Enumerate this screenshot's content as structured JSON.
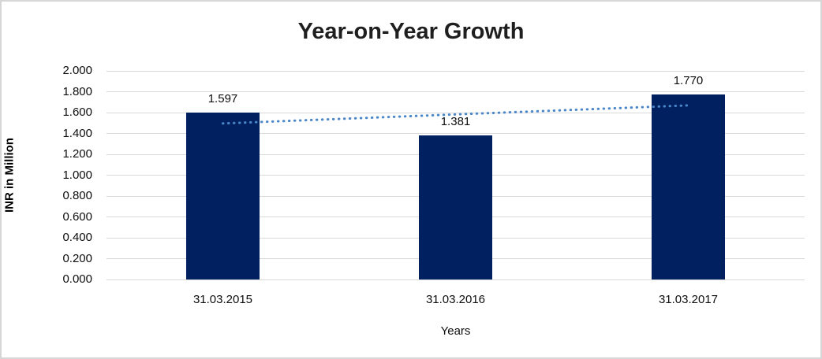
{
  "window": {
    "title": "Year-on-Year Growth"
  },
  "chart_data": {
    "type": "bar",
    "title": "Year-on-Year Growth",
    "categories": [
      "31.03.2015",
      "31.03.2016",
      "31.03.2017"
    ],
    "values": [
      1.597,
      1.381,
      1.77
    ],
    "value_labels": [
      "1.597",
      "1.381",
      "1.770"
    ],
    "xlabel": "Years",
    "ylabel": "INR in Million",
    "ylim": [
      0.0,
      2.0
    ],
    "ytick_step": 0.2,
    "ytick_labels": [
      "0.000",
      "0.200",
      "0.400",
      "0.600",
      "0.800",
      "1.000",
      "1.200",
      "1.400",
      "1.600",
      "1.800",
      "2.000"
    ],
    "grid": "horizontal-only",
    "legend": "none",
    "trendline": {
      "type": "linear",
      "style": "dotted",
      "start_value": 1.496,
      "end_value": 1.669
    }
  },
  "colors": {
    "bar": "#002060",
    "trendline": "#4a86c8",
    "gridline": "#d9d9d9",
    "frame_border": "#d6d6d6",
    "title_text": "#1f1f1f",
    "axis_text": "#0d0d0d",
    "background": "#ffffff"
  }
}
